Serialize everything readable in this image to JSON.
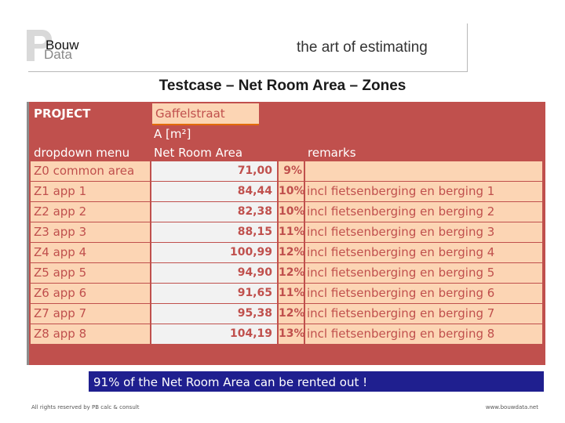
{
  "header": {
    "logo_line1": "Bouw",
    "logo_line2": "Data",
    "tagline": "the art of estimating"
  },
  "title": "Testcase – Net Room Area – Zones",
  "sheet": {
    "project_label": "PROJECT",
    "project_value": "Gaffelstraat",
    "col_a_head": "A [m²]",
    "col_dropdown": "dropdown menu",
    "col_area": "Net Room Area",
    "col_remarks": "remarks",
    "rows": [
      {
        "zone": "Z0 common area",
        "area": "71,00",
        "pct": "9%",
        "remark": ""
      },
      {
        "zone": "Z1 app 1",
        "area": "84,44",
        "pct": "10%",
        "remark": "incl fietsenberging en berging 1"
      },
      {
        "zone": "Z2 app 2",
        "area": "82,38",
        "pct": "10%",
        "remark": "incl fietsenberging en berging 2"
      },
      {
        "zone": "Z3 app 3",
        "area": "88,15",
        "pct": "11%",
        "remark": "incl fietsenberging en berging 3"
      },
      {
        "zone": "Z4 app 4",
        "area": "100,99",
        "pct": "12%",
        "remark": "incl fietsenberging en berging 4"
      },
      {
        "zone": "Z5 app 5",
        "area": "94,90",
        "pct": "12%",
        "remark": "incl fietsenberging en berging 5"
      },
      {
        "zone": "Z6 app 6",
        "area": "91,65",
        "pct": "11%",
        "remark": "incl fietsenberging en berging 6"
      },
      {
        "zone": "Z7 app 7",
        "area": "95,38",
        "pct": "12%",
        "remark": "incl fietsenberging en berging 7"
      },
      {
        "zone": "Z8 app 8",
        "area": "104,19",
        "pct": "13%",
        "remark": "incl fietsenberging en berging 8"
      }
    ]
  },
  "banner": "91% of the Net Room Area can be rented out !",
  "footer": {
    "left": "All rights reserved by PB calc & consult",
    "right": "www.bouwdata.net"
  },
  "colors": {
    "sheet_bg": "#c0504d",
    "cell_peach": "#fcd5b4",
    "cell_grey": "#f2f2f2",
    "banner_bg": "#1f1f8f"
  }
}
